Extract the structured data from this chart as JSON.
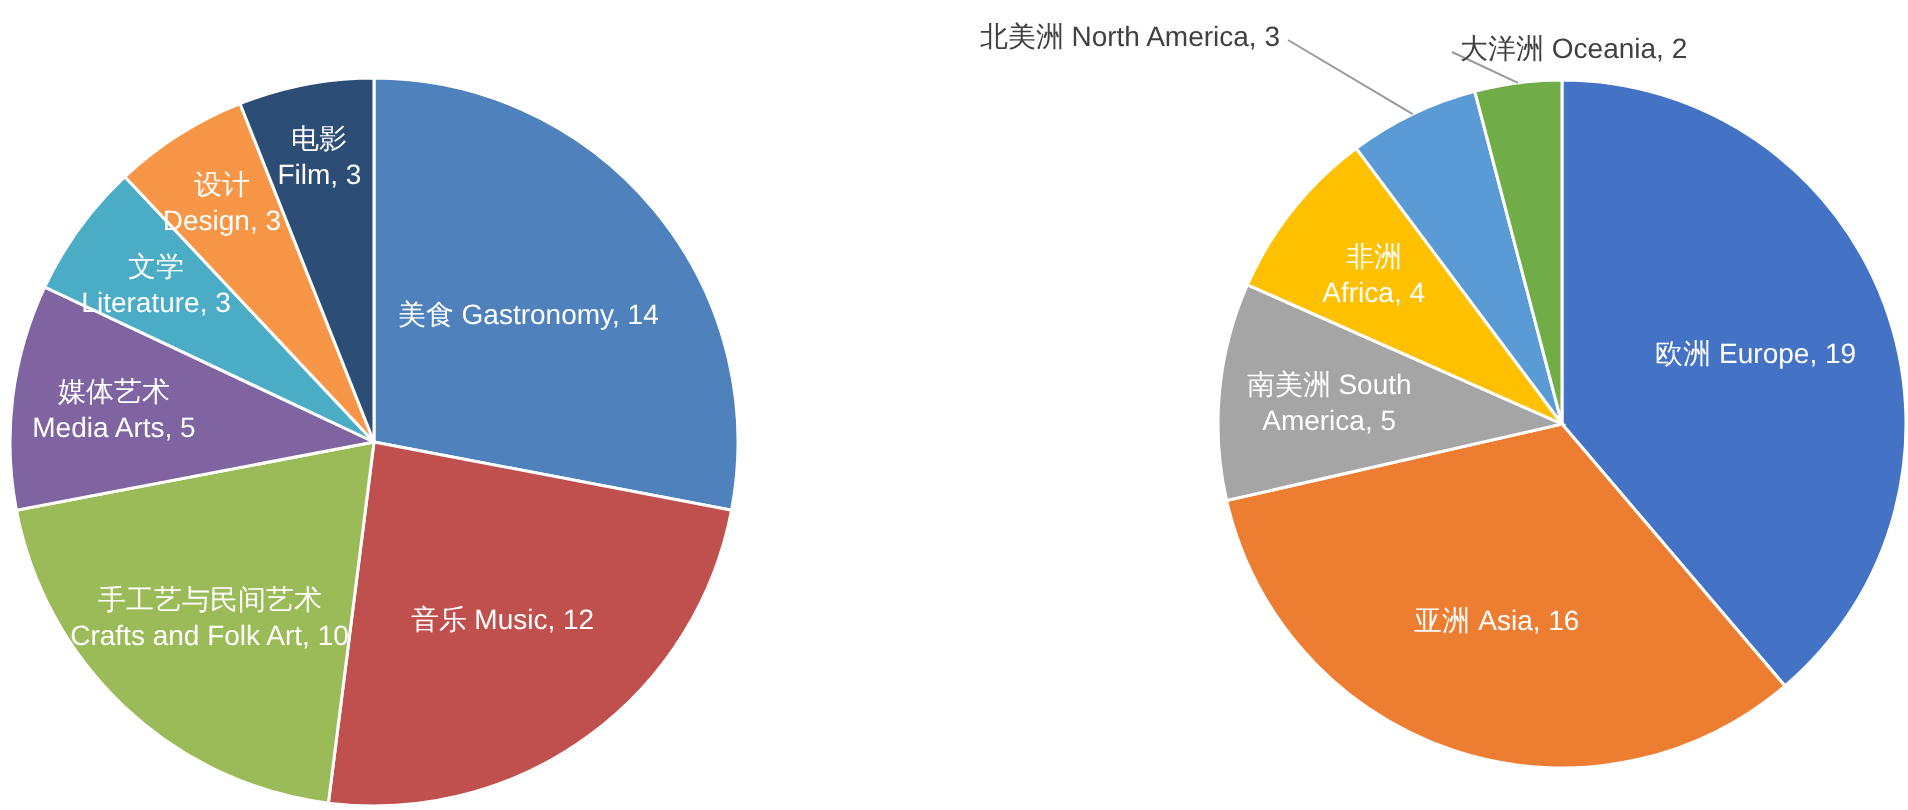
{
  "chart_data": [
    {
      "type": "pie",
      "categories": [
        "美食 Gastronomy",
        "音乐 Music",
        "手工艺与民间艺术 Crafts and Folk Art",
        "媒体艺术 Media Arts",
        "文学 Literature",
        "设计 Design",
        "电影 Film"
      ],
      "values": [
        14,
        12,
        10,
        5,
        3,
        3,
        3
      ],
      "colors": [
        "#4f81bd",
        "#c0504d",
        "#9bbb59",
        "#8064a2",
        "#4bacc6",
        "#f79646",
        "#2c4d75"
      ],
      "value_labels": [
        ", 14",
        ", 12",
        ", 10",
        ", 5",
        ", 3",
        ", 3",
        ", 3"
      ]
    },
    {
      "type": "pie",
      "categories": [
        "欧洲 Europe",
        "亚洲 Asia",
        "南美洲 South America",
        "非洲 Africa",
        "北美洲 North America",
        "大洋洲 Oceania"
      ],
      "values": [
        19,
        16,
        5,
        4,
        3,
        2
      ],
      "colors": [
        "#4472c4",
        "#ed7d31",
        "#a5a5a5",
        "#ffc000",
        "#5b9bd5",
        "#70ad47"
      ],
      "value_labels": [
        ", 19",
        ", 16",
        ", 5",
        ", 4",
        ", 3",
        ", 2"
      ]
    }
  ]
}
